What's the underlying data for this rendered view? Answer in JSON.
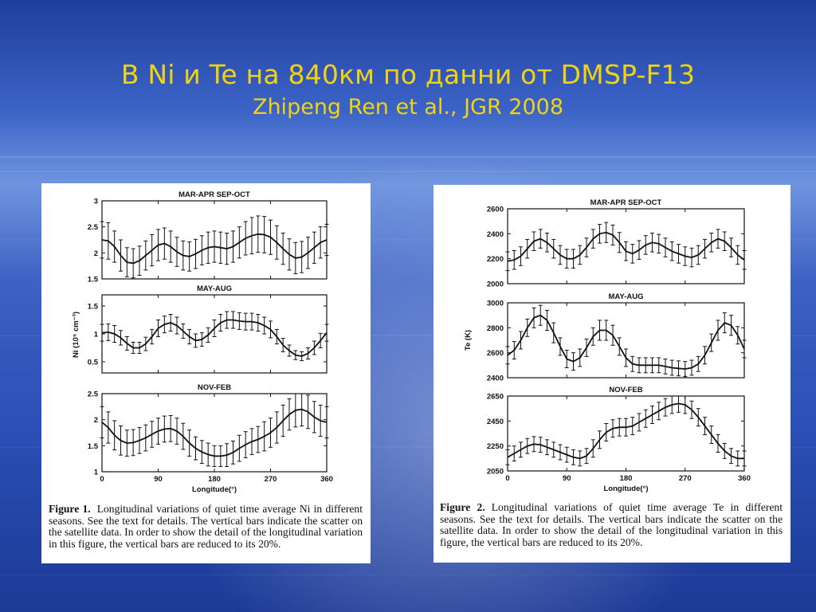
{
  "slide": {
    "title": "B Ni и Te на 840км по данни от DMSP-F13",
    "subtitle": "Zhipeng Ren et al., JGR 2008"
  },
  "figure1": {
    "caption_label": "Figure 1.",
    "caption_text": "Longitudinal variations of quiet time average Ni in different seasons. See the text for details. The vertical bars indicate the scatter on the satellite data. In order to show the detail of the longitudinal variation in this figure, the vertical bars are reduced to its 20%.",
    "ylabel": "Ni (10⁵ cm⁻³)",
    "xlabel": "Longitude(°)"
  },
  "figure2": {
    "caption_label": "Figure 2.",
    "caption_text": "Longitudinal variations of quiet time average Te in different seasons. See the text for details. The vertical bars indicate the scatter on the satellite data. In order to show the detail of the longitudinal variation in this figure, the vertical bars are reduced to its 20%.",
    "ylabel": "Te (K)",
    "xlabel": "Longitude(°)"
  },
  "chart_data": [
    {
      "type": "line",
      "figure": "Figure 1",
      "title": "MAR-APR SEP-OCT",
      "xlabel": "",
      "ylabel": "",
      "xlim": [
        0,
        360
      ],
      "ylim": [
        1.5,
        3
      ],
      "yticks": [
        1.5,
        2,
        2.5,
        3
      ],
      "xticks": [
        0,
        90,
        180,
        270,
        360
      ],
      "show_xtick_labels": false,
      "error_bars": true,
      "x": [
        0,
        10,
        20,
        30,
        40,
        50,
        60,
        70,
        80,
        90,
        100,
        110,
        120,
        130,
        140,
        150,
        160,
        170,
        180,
        190,
        200,
        210,
        220,
        230,
        240,
        250,
        260,
        270,
        280,
        290,
        300,
        310,
        320,
        330,
        340,
        350,
        360
      ],
      "y": [
        2.25,
        2.23,
        2.12,
        1.95,
        1.82,
        1.8,
        1.85,
        1.95,
        2.05,
        2.15,
        2.18,
        2.12,
        2.02,
        1.95,
        1.93,
        1.98,
        2.05,
        2.1,
        2.12,
        2.1,
        2.08,
        2.12,
        2.2,
        2.28,
        2.33,
        2.36,
        2.35,
        2.3,
        2.2,
        2.08,
        1.97,
        1.9,
        1.92,
        2.0,
        2.1,
        2.2,
        2.25
      ],
      "err": [
        0.35,
        0.35,
        0.3,
        0.3,
        0.28,
        0.28,
        0.28,
        0.28,
        0.3,
        0.3,
        0.3,
        0.3,
        0.28,
        0.28,
        0.28,
        0.28,
        0.28,
        0.3,
        0.3,
        0.3,
        0.3,
        0.3,
        0.3,
        0.32,
        0.35,
        0.35,
        0.35,
        0.33,
        0.32,
        0.3,
        0.3,
        0.3,
        0.3,
        0.3,
        0.3,
        0.3,
        0.3
      ]
    },
    {
      "type": "line",
      "figure": "Figure 1",
      "title": "MAY-AUG",
      "xlabel": "",
      "ylabel": "",
      "xlim": [
        0,
        360
      ],
      "ylim": [
        0.3,
        1.7
      ],
      "yticks": [
        0.5,
        1,
        1.5
      ],
      "xticks": [
        0,
        90,
        180,
        270,
        360
      ],
      "show_xtick_labels": false,
      "error_bars": true,
      "x": [
        0,
        10,
        20,
        30,
        40,
        50,
        60,
        70,
        80,
        90,
        100,
        110,
        120,
        130,
        140,
        150,
        160,
        170,
        180,
        190,
        200,
        210,
        220,
        230,
        240,
        250,
        260,
        270,
        280,
        290,
        300,
        310,
        320,
        330,
        340,
        350,
        360
      ],
      "y": [
        1.02,
        1.03,
        1.0,
        0.93,
        0.83,
        0.75,
        0.75,
        0.82,
        0.95,
        1.1,
        1.17,
        1.2,
        1.15,
        1.05,
        0.95,
        0.88,
        0.9,
        0.98,
        1.1,
        1.2,
        1.25,
        1.25,
        1.23,
        1.22,
        1.22,
        1.2,
        1.15,
        1.08,
        0.95,
        0.8,
        0.7,
        0.62,
        0.6,
        0.65,
        0.75,
        0.88,
        1.02
      ],
      "err": [
        0.15,
        0.15,
        0.15,
        0.13,
        0.12,
        0.1,
        0.1,
        0.12,
        0.13,
        0.15,
        0.15,
        0.15,
        0.15,
        0.13,
        0.13,
        0.12,
        0.12,
        0.13,
        0.15,
        0.15,
        0.15,
        0.15,
        0.15,
        0.15,
        0.15,
        0.15,
        0.15,
        0.15,
        0.13,
        0.12,
        0.1,
        0.08,
        0.08,
        0.1,
        0.12,
        0.13,
        0.15
      ]
    },
    {
      "type": "line",
      "figure": "Figure 1",
      "title": "NOV-FEB",
      "xlabel": "Longitude(°)",
      "ylabel": "",
      "xlim": [
        0,
        360
      ],
      "ylim": [
        1,
        2.5
      ],
      "yticks": [
        1,
        1.5,
        2,
        2.5
      ],
      "xticks": [
        0,
        90,
        180,
        270,
        360
      ],
      "show_xtick_labels": true,
      "error_bars": true,
      "x": [
        0,
        10,
        20,
        30,
        40,
        50,
        60,
        70,
        80,
        90,
        100,
        110,
        120,
        130,
        140,
        150,
        160,
        170,
        180,
        190,
        200,
        210,
        220,
        230,
        240,
        250,
        260,
        270,
        280,
        290,
        300,
        310,
        320,
        330,
        340,
        350,
        360
      ],
      "y": [
        1.95,
        1.85,
        1.7,
        1.6,
        1.55,
        1.56,
        1.6,
        1.65,
        1.72,
        1.78,
        1.82,
        1.83,
        1.78,
        1.68,
        1.55,
        1.45,
        1.38,
        1.33,
        1.3,
        1.3,
        1.32,
        1.37,
        1.45,
        1.52,
        1.58,
        1.62,
        1.68,
        1.75,
        1.85,
        1.98,
        2.1,
        2.18,
        2.2,
        2.15,
        2.05,
        1.98,
        1.95
      ],
      "err": [
        0.3,
        0.3,
        0.28,
        0.28,
        0.25,
        0.25,
        0.25,
        0.25,
        0.25,
        0.25,
        0.25,
        0.25,
        0.25,
        0.25,
        0.25,
        0.22,
        0.22,
        0.22,
        0.2,
        0.2,
        0.22,
        0.22,
        0.25,
        0.25,
        0.25,
        0.25,
        0.28,
        0.28,
        0.3,
        0.3,
        0.3,
        0.32,
        0.32,
        0.32,
        0.3,
        0.3,
        0.3
      ]
    },
    {
      "type": "line",
      "figure": "Figure 2",
      "title": "MAR-APR SEP-OCT",
      "xlabel": "",
      "ylabel": "",
      "xlim": [
        0,
        360
      ],
      "ylim": [
        2000,
        2600
      ],
      "yticks": [
        2000,
        2200,
        2400,
        2600
      ],
      "xticks": [
        0,
        90,
        180,
        270,
        360
      ],
      "show_xtick_labels": false,
      "error_bars": true,
      "x": [
        0,
        10,
        20,
        30,
        40,
        50,
        60,
        70,
        80,
        90,
        100,
        110,
        120,
        130,
        140,
        150,
        160,
        170,
        180,
        190,
        200,
        210,
        220,
        230,
        240,
        250,
        260,
        270,
        280,
        290,
        300,
        310,
        320,
        330,
        340,
        350,
        360
      ],
      "y": [
        2180,
        2190,
        2220,
        2280,
        2340,
        2360,
        2330,
        2280,
        2230,
        2200,
        2200,
        2230,
        2290,
        2360,
        2400,
        2410,
        2390,
        2330,
        2260,
        2240,
        2270,
        2310,
        2330,
        2320,
        2290,
        2260,
        2240,
        2220,
        2210,
        2230,
        2280,
        2330,
        2360,
        2340,
        2290,
        2230,
        2190
      ],
      "err": [
        75,
        75,
        75,
        75,
        75,
        75,
        75,
        75,
        75,
        75,
        75,
        75,
        75,
        75,
        75,
        80,
        80,
        80,
        75,
        75,
        75,
        75,
        75,
        75,
        75,
        75,
        75,
        75,
        75,
        75,
        75,
        75,
        75,
        75,
        75,
        75,
        75
      ]
    },
    {
      "type": "line",
      "figure": "Figure 2",
      "title": "MAY-AUG",
      "xlabel": "",
      "ylabel": "",
      "xlim": [
        0,
        360
      ],
      "ylim": [
        2400,
        3000
      ],
      "yticks": [
        2400,
        2600,
        2800,
        3000
      ],
      "xticks": [
        0,
        90,
        180,
        270,
        360
      ],
      "show_xtick_labels": false,
      "error_bars": true,
      "x": [
        0,
        10,
        20,
        30,
        40,
        50,
        60,
        70,
        80,
        90,
        100,
        110,
        120,
        130,
        140,
        150,
        160,
        170,
        180,
        190,
        200,
        210,
        220,
        230,
        240,
        250,
        260,
        270,
        280,
        290,
        300,
        310,
        320,
        330,
        340,
        350,
        360
      ],
      "y": [
        2580,
        2620,
        2700,
        2800,
        2880,
        2900,
        2860,
        2760,
        2650,
        2550,
        2530,
        2560,
        2640,
        2730,
        2780,
        2780,
        2740,
        2650,
        2560,
        2510,
        2500,
        2500,
        2500,
        2500,
        2490,
        2480,
        2475,
        2470,
        2480,
        2510,
        2580,
        2680,
        2780,
        2840,
        2820,
        2740,
        2630
      ],
      "err": [
        70,
        70,
        70,
        70,
        80,
        80,
        80,
        80,
        70,
        70,
        70,
        70,
        70,
        70,
        80,
        80,
        80,
        70,
        70,
        60,
        60,
        60,
        60,
        60,
        60,
        60,
        60,
        60,
        60,
        60,
        70,
        70,
        80,
        80,
        80,
        70,
        70
      ]
    },
    {
      "type": "line",
      "figure": "Figure 2",
      "title": "NOV-FEB",
      "xlabel": "Longitude(°)",
      "ylabel": "",
      "xlim": [
        0,
        360
      ],
      "ylim": [
        2050,
        2650
      ],
      "yticks": [
        2050,
        2250,
        2450,
        2650
      ],
      "xticks": [
        0,
        90,
        180,
        270,
        360
      ],
      "show_xtick_labels": true,
      "error_bars": true,
      "x": [
        0,
        10,
        20,
        30,
        40,
        50,
        60,
        70,
        80,
        90,
        100,
        110,
        120,
        130,
        140,
        150,
        160,
        170,
        180,
        190,
        200,
        210,
        220,
        230,
        240,
        250,
        260,
        270,
        280,
        290,
        300,
        310,
        320,
        330,
        340,
        350,
        360
      ],
      "y": [
        2160,
        2190,
        2220,
        2250,
        2265,
        2260,
        2240,
        2220,
        2200,
        2180,
        2160,
        2150,
        2170,
        2230,
        2300,
        2360,
        2390,
        2400,
        2400,
        2410,
        2440,
        2470,
        2500,
        2530,
        2560,
        2580,
        2590,
        2580,
        2540,
        2480,
        2410,
        2340,
        2270,
        2210,
        2170,
        2150,
        2150
      ],
      "err": [
        60,
        60,
        60,
        60,
        60,
        60,
        60,
        60,
        60,
        60,
        60,
        60,
        60,
        70,
        70,
        70,
        70,
        70,
        70,
        70,
        70,
        70,
        70,
        70,
        70,
        70,
        70,
        70,
        70,
        70,
        70,
        70,
        70,
        60,
        60,
        60,
        60
      ]
    }
  ]
}
